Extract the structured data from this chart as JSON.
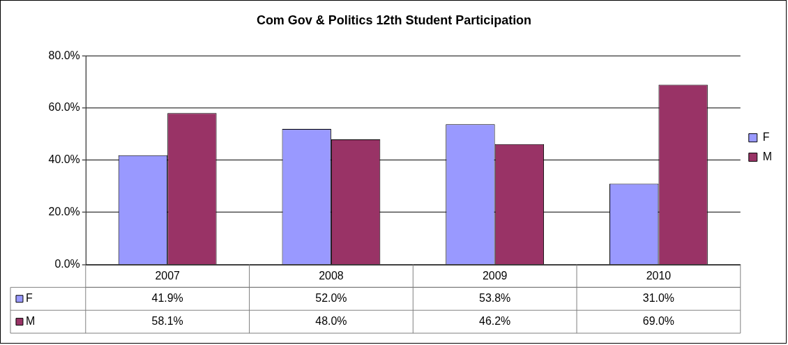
{
  "chart_data": {
    "type": "bar",
    "title": "Com Gov & Politics 12th Student Participation",
    "categories": [
      "2007",
      "2008",
      "2009",
      "2010"
    ],
    "series": [
      {
        "name": "F",
        "color": "#9999ff",
        "values": [
          41.9,
          52.0,
          53.8,
          31.0
        ],
        "value_labels": [
          "41.9%",
          "52.0%",
          "53.8%",
          "31.0%"
        ]
      },
      {
        "name": "M",
        "color": "#993366",
        "values": [
          58.1,
          48.0,
          46.2,
          69.0
        ],
        "value_labels": [
          "58.1%",
          "48.0%",
          "46.2%",
          "69.0%"
        ]
      }
    ],
    "ylim": [
      0,
      80
    ],
    "yticks": [
      {
        "value": 0,
        "label": "0.0%"
      },
      {
        "value": 20,
        "label": "20.0%"
      },
      {
        "value": 40,
        "label": "40.0%"
      },
      {
        "value": 60,
        "label": "60.0%"
      },
      {
        "value": 80,
        "label": "80.0%"
      }
    ],
    "grid": "y",
    "legend": "right"
  }
}
